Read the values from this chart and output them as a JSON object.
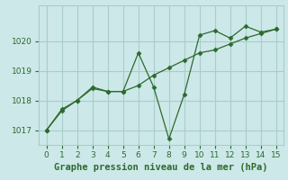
{
  "x": [
    0,
    1,
    2,
    3,
    4,
    5,
    6,
    7,
    8,
    9,
    10,
    11,
    12,
    13,
    14,
    15
  ],
  "line1": [
    1017.0,
    1017.7,
    1018.0,
    1018.45,
    1018.3,
    1018.3,
    1019.6,
    1018.45,
    1016.7,
    1018.2,
    1020.2,
    1020.35,
    1020.1,
    1020.5,
    1020.3,
    1020.4
  ],
  "line2": [
    1017.0,
    1017.65,
    1018.0,
    1018.4,
    1018.3,
    1018.3,
    1018.5,
    1018.85,
    1019.1,
    1019.35,
    1019.6,
    1019.7,
    1019.9,
    1020.1,
    1020.25,
    1020.4
  ],
  "line_color": "#2d6a2d",
  "bg_color": "#cce8e8",
  "grid_color": "#aacccc",
  "xlabel": "Graphe pression niveau de la mer (hPa)",
  "xlim": [
    -0.5,
    15.5
  ],
  "ylim": [
    1016.5,
    1021.2
  ],
  "yticks": [
    1017,
    1018,
    1019,
    1020
  ],
  "xticks": [
    0,
    1,
    2,
    3,
    4,
    5,
    6,
    7,
    8,
    9,
    10,
    11,
    12,
    13,
    14,
    15
  ],
  "xlabel_fontsize": 7.5,
  "tick_fontsize": 6.5
}
